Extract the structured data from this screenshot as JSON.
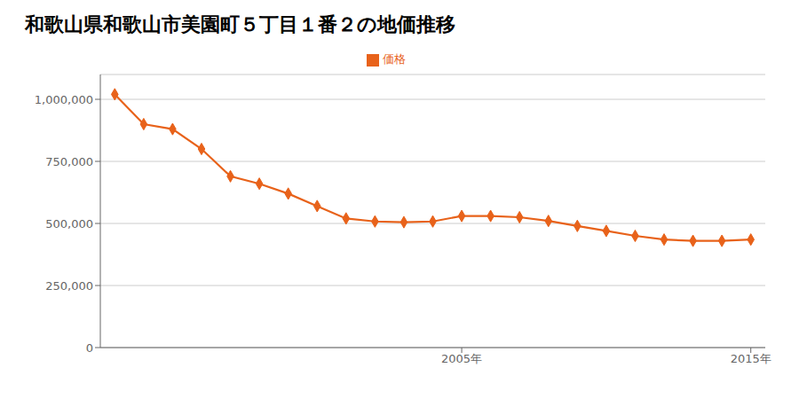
{
  "chart_data": {
    "type": "line",
    "title": "和歌山県和歌山市美園町５丁目１番２の地価推移",
    "x": [
      1993,
      1994,
      1995,
      1996,
      1997,
      1998,
      1999,
      2000,
      2001,
      2002,
      2003,
      2004,
      2005,
      2006,
      2007,
      2008,
      2009,
      2010,
      2011,
      2012,
      2013,
      2014,
      2015
    ],
    "series": [
      {
        "name": "価格",
        "color": "#E8621A",
        "marker": "diamond",
        "values": [
          1020000,
          900000,
          880000,
          800000,
          690000,
          660000,
          620000,
          570000,
          520000,
          508000,
          505000,
          508000,
          530000,
          530000,
          525000,
          510000,
          490000,
          470000,
          450000,
          435000,
          430000,
          430000,
          435000
        ]
      }
    ],
    "xlim": [
      1992.5,
      2015.5
    ],
    "xticks": [
      {
        "value": 2005,
        "label": "2005年"
      },
      {
        "value": 2015,
        "label": "2015年"
      }
    ],
    "ylim": [
      0,
      1100000
    ],
    "yticks": [
      0,
      {
        "value": 250000,
        "label": "250,000"
      },
      {
        "value": 500000,
        "label": "500,000"
      },
      {
        "value": 750000,
        "label": "750,000"
      },
      {
        "value": 1000000,
        "label": "1,000,000"
      }
    ],
    "grid": true,
    "legend": "top"
  }
}
